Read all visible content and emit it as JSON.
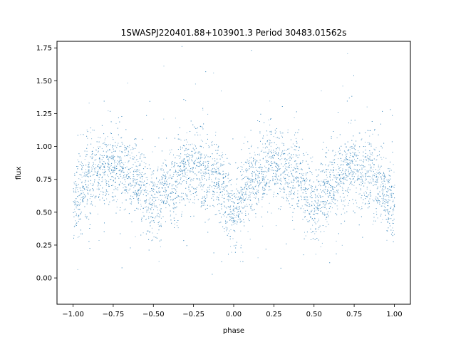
{
  "chart_data": {
    "type": "scatter",
    "title": "1SWASPJ220401.88+103901.3 Period 30483.01562s",
    "xlabel": "phase",
    "ylabel": "flux",
    "xlim": [
      -1.1,
      1.1
    ],
    "ylim": [
      -0.2,
      1.8
    ],
    "xticks": [
      -1.0,
      -0.75,
      -0.5,
      -0.25,
      0.0,
      0.25,
      0.5,
      0.75,
      1.0
    ],
    "xtick_labels": [
      "−1.00",
      "−0.75",
      "−0.50",
      "−0.25",
      "0.00",
      "0.25",
      "0.50",
      "0.75",
      "1.00"
    ],
    "yticks": [
      0.0,
      0.25,
      0.5,
      0.75,
      1.0,
      1.25,
      1.5,
      1.75
    ],
    "ytick_labels": [
      "0.00",
      "0.25",
      "0.50",
      "0.75",
      "1.00",
      "1.25",
      "1.50",
      "1.75"
    ],
    "grid": false,
    "marker_color": "#1f77b4",
    "series": [
      {
        "phase_flux_profile": [
          {
            "x": -1.0,
            "y": 0.58
          },
          {
            "x": -0.875,
            "y": 0.78
          },
          {
            "x": -0.75,
            "y": 0.87
          },
          {
            "x": -0.625,
            "y": 0.78
          },
          {
            "x": -0.5,
            "y": 0.58
          },
          {
            "x": -0.375,
            "y": 0.73
          },
          {
            "x": -0.25,
            "y": 0.85
          },
          {
            "x": -0.125,
            "y": 0.76
          },
          {
            "x": 0.0,
            "y": 0.53
          },
          {
            "x": 0.125,
            "y": 0.75
          },
          {
            "x": 0.25,
            "y": 0.87
          },
          {
            "x": 0.375,
            "y": 0.78
          },
          {
            "x": 0.5,
            "y": 0.58
          },
          {
            "x": 0.625,
            "y": 0.73
          },
          {
            "x": 0.75,
            "y": 0.85
          },
          {
            "x": 0.875,
            "y": 0.76
          },
          {
            "x": 1.0,
            "y": 0.53
          }
        ]
      }
    ]
  }
}
